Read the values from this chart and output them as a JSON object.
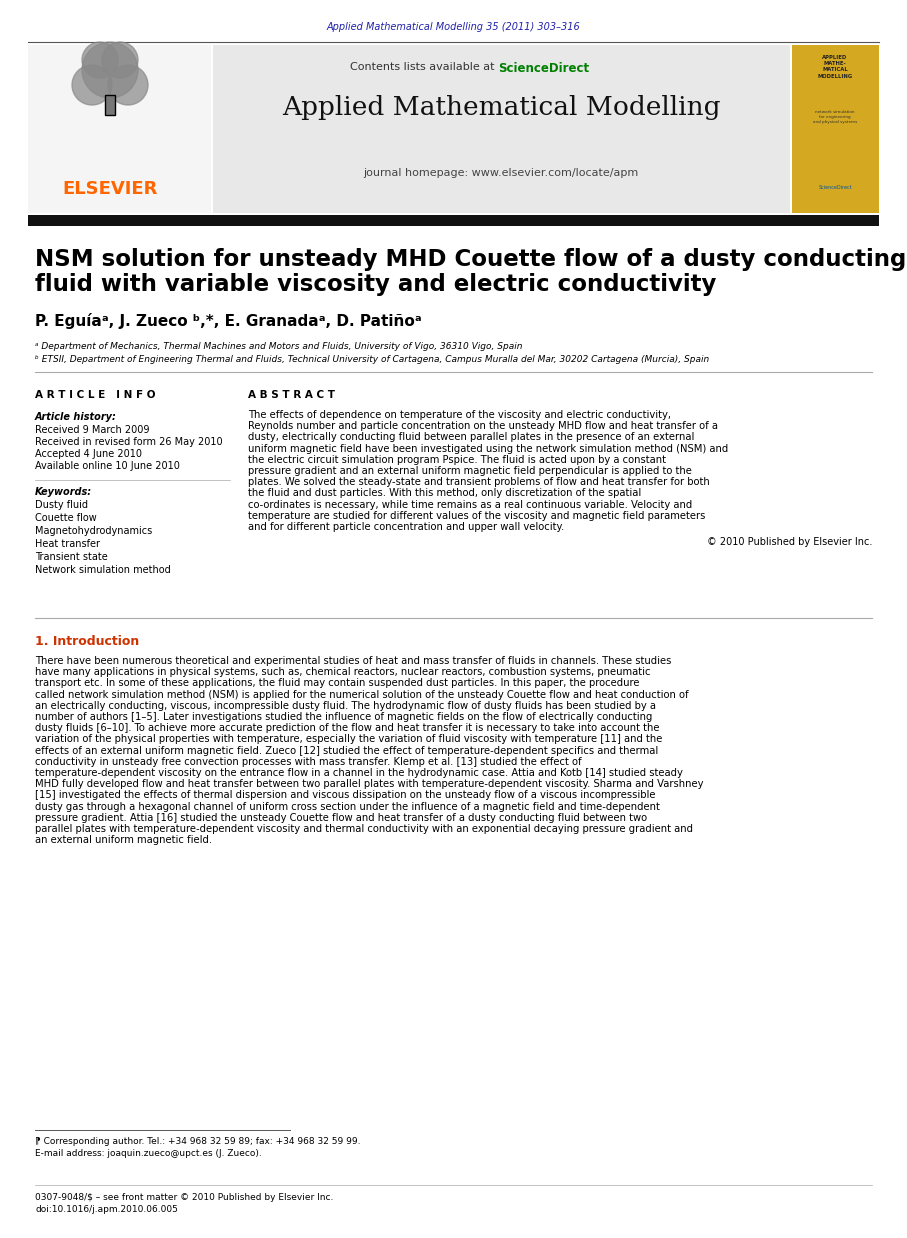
{
  "page_bg": "#ffffff",
  "top_journal_ref": "Applied Mathematical Modelling 35 (2011) 303–316",
  "top_journal_ref_color": "#2222aa",
  "journal_header_bg": "#e8e8e8",
  "journal_header_text": "Applied Mathematical Modelling",
  "journal_contents_text": "Contents lists available at ",
  "sciencedirect_text": "ScienceDirect",
  "sciencedirect_color": "#008000",
  "journal_homepage_text": "journal homepage: www.elsevier.com/locate/apm",
  "elsevier_color": "#ff6600",
  "elsevier_text": "ELSEVIER",
  "cover_bg": "#d4a820",
  "paper_title_line1": "NSM solution for unsteady MHD Couette flow of a dusty conducting",
  "paper_title_line2": "fluid with variable viscosity and electric conductivity",
  "authors": "P. Eguíaᵃ, J. Zueco ᵇ,*, E. Granadaᵃ, D. Patiñoᵃ",
  "affil_a": "ᵃ Department of Mechanics, Thermal Machines and Motors and Fluids, University of Vigo, 36310 Vigo, Spain",
  "affil_b": "ᵇ ETSII, Department of Engineering Thermal and Fluids, Technical University of Cartagena, Campus Muralla del Mar, 30202 Cartagena (Murcia), Spain",
  "article_info_header": "A R T I C L E   I N F O",
  "abstract_header": "A B S T R A C T",
  "article_history_label": "Article history:",
  "received1": "Received 9 March 2009",
  "received2": "Received in revised form 26 May 2010",
  "accepted": "Accepted 4 June 2010",
  "available": "Available online 10 June 2010",
  "keywords_label": "Keywords:",
  "keywords": [
    "Dusty fluid",
    "Couette flow",
    "Magnetohydrodynamics",
    "Heat transfer",
    "Transient state",
    "Network simulation method"
  ],
  "abstract_text": "The effects of dependence on temperature of the viscosity and electric conductivity, Reynolds number and particle concentration on the unsteady MHD flow and heat transfer of a dusty, electrically conducting fluid between parallel plates in the presence of an external uniform magnetic field have been investigated using the network simulation method (NSM) and the electric circuit simulation program Pspice. The fluid is acted upon by a constant pressure gradient and an external uniform magnetic field perpendicular is applied to the plates. We solved the steady-state and transient problems of flow and heat transfer for both the fluid and dust particles. With this method, only discretization of the spatial co-ordinates is necessary, while time remains as a real continuous variable. Velocity and temperature are studied for different values of the viscosity and magnetic field parameters and for different particle concentration and upper wall velocity.",
  "abstract_copyright": "© 2010 Published by Elsevier Inc.",
  "intro_header": "1. Introduction",
  "intro_text": "There have been numerous theoretical and experimental studies of heat and mass transfer of fluids in channels. These studies have many applications in physical systems, such as, chemical reactors, nuclear reactors, combustion systems, pneumatic transport etc. In some of these applications, the fluid may contain suspended dust particles. In this paper, the procedure called network simulation method (NSM) is applied for the numerical solution of the unsteady Couette flow and heat conduction of an electrically conducting, viscous, incompressible dusty fluid. The hydrodynamic flow of dusty fluids has been studied by a number of authors [1–5]. Later investigations studied the influence of magnetic fields on the flow of electrically conducting dusty fluids [6–10]. To achieve more accurate prediction of the flow and heat transfer it is necessary to take into account the variation of the physical properties with temperature, especially the variation of fluid viscosity with temperature [11] and the effects of an external uniform magnetic field. Zueco [12] studied the effect of temperature-dependent specifics and thermal conductivity in unsteady free convection processes with mass transfer. Klemp et al. [13] studied the effect of temperature-dependent viscosity on the entrance flow in a channel in the hydrodynamic case. Attia and Kotb [14] studied steady MHD fully developed flow and heat transfer between two parallel plates with temperature-dependent viscosity. Sharma and Varshney [15] investigated the effects of thermal dispersion and viscous dissipation on the unsteady flow of a viscous incompressible dusty gas through a hexagonal channel of uniform cross section under the influence of a magnetic field and time-dependent pressure gradient. Attia [16] studied the unsteady Couette flow and heat transfer of a dusty conducting fluid between two parallel plates with temperature-dependent viscosity and thermal conductivity with an exponential decaying pressure gradient and an external uniform magnetic field.",
  "footnote_star": "⁋ Corresponding author. Tel.: +34 968 32 59 89; fax: +34 968 32 59 99.",
  "footnote_email": "E-mail address: joaquin.zueco@upct.es (J. Zueco).",
  "footer_issn": "0307-9048/$ – see front matter © 2010 Published by Elsevier Inc.",
  "footer_doi": "doi:10.1016/j.apm.2010.06.005"
}
